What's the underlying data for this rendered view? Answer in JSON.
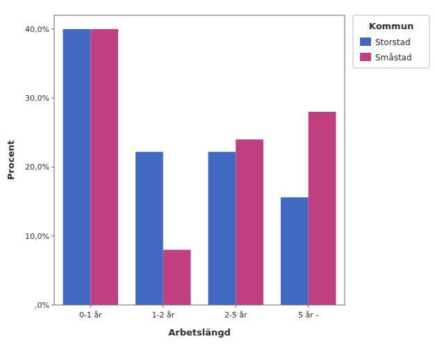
{
  "chart_data": {
    "type": "bar",
    "xlabel": "Arbetslängd",
    "ylabel": "Procent",
    "categories": [
      "0-1 år",
      "1-2 år",
      "2-5 år",
      "5 år -"
    ],
    "series": [
      {
        "name": "Storstad",
        "color": "#4169C4",
        "values": [
          40.0,
          22.2,
          22.2,
          15.6
        ]
      },
      {
        "name": "Småstad",
        "color": "#BE4080",
        "values": [
          40.0,
          8.0,
          24.0,
          28.0
        ]
      }
    ],
    "legend_title": "Kommun",
    "legend": "right",
    "ylim": [
      0,
      42
    ],
    "yticks": [
      {
        "value": 0,
        "label": ",0%"
      },
      {
        "value": 10,
        "label": "10,0%"
      },
      {
        "value": 20,
        "label": "20,0%"
      },
      {
        "value": 30,
        "label": "30,0%"
      },
      {
        "value": 40,
        "label": "40,0%"
      }
    ],
    "grid": false
  }
}
